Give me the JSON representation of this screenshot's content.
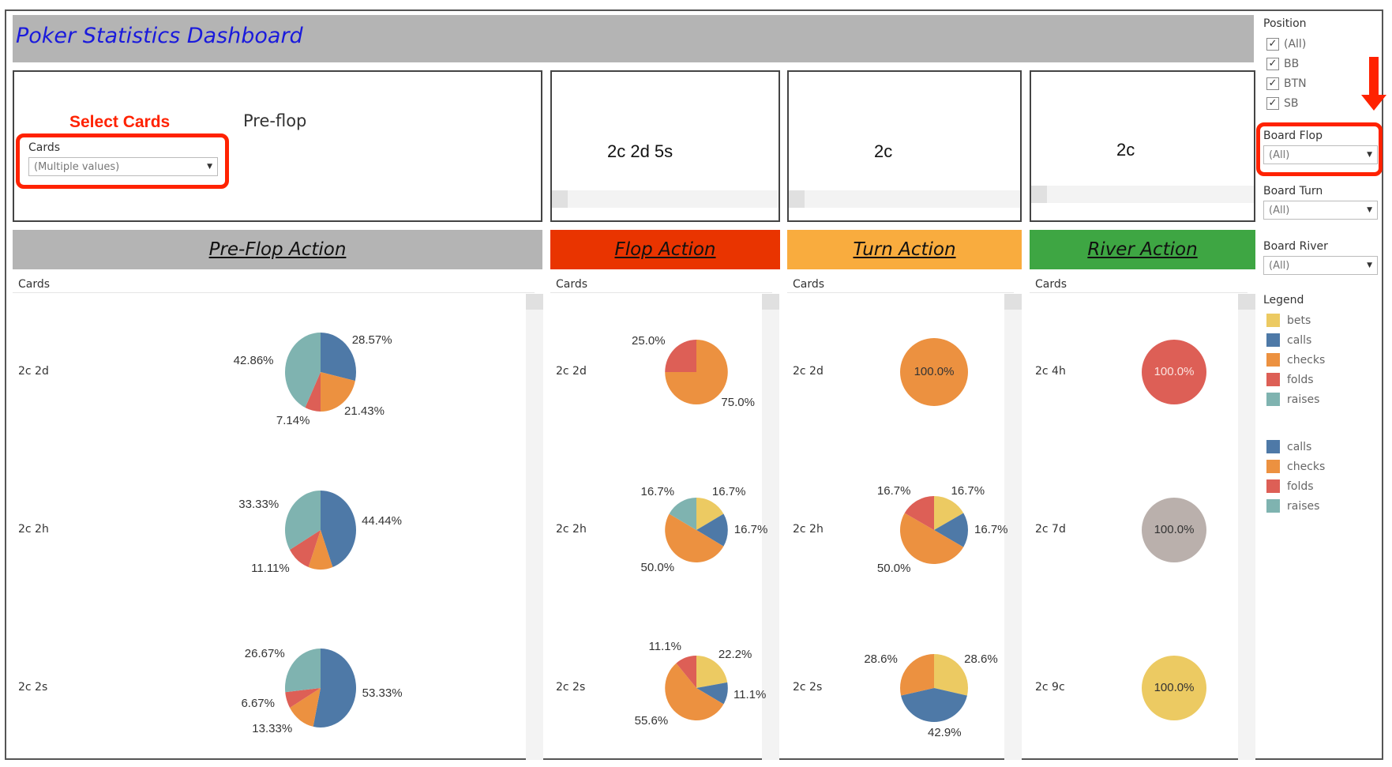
{
  "title": "Poker Statistics Dashboard",
  "colors": {
    "bets": "#ecca62",
    "calls": "#4e79a7",
    "checks": "#ec9140",
    "folds": "#dd5f56",
    "raises": "#7fb3b0",
    "unknown": "#bab0ac",
    "title_text": "#1a1adc",
    "annotation": "#ff2200",
    "preflop_header": "#b4b4b4",
    "flop_header": "#e93400",
    "turn_header": "#f9ac3e",
    "river_header": "#3ea643"
  },
  "top_panels": {
    "preflop": {
      "annotation_label": "Select Cards",
      "stage_label": "Pre-flop",
      "cards_filter": {
        "label": "Cards",
        "value": "(Multiple values)"
      }
    },
    "flop": {
      "value": "2c 2d 5s"
    },
    "turn": {
      "value": "2c"
    },
    "river": {
      "value": "2c"
    }
  },
  "sidebar": {
    "position": {
      "title": "Position",
      "options": [
        {
          "label": "(All)",
          "checked": true
        },
        {
          "label": "BB",
          "checked": true
        },
        {
          "label": "BTN",
          "checked": true
        },
        {
          "label": "SB",
          "checked": true
        }
      ]
    },
    "board_flop": {
      "label": "Board Flop",
      "value": "(All)"
    },
    "board_turn": {
      "label": "Board Turn",
      "value": "(All)"
    },
    "board_river": {
      "label": "Board River",
      "value": "(All)"
    },
    "legend": {
      "title": "Legend",
      "group1": [
        "bets",
        "calls",
        "checks",
        "folds",
        "raises"
      ],
      "group2": [
        "calls",
        "checks",
        "folds",
        "raises"
      ]
    }
  },
  "chart_data": [
    {
      "type": "pie",
      "title": "Pre-Flop Action",
      "row_header": "Cards",
      "rows": [
        {
          "cards": "2c 2d",
          "slices": [
            {
              "action": "calls",
              "value": 28.57,
              "label": "28.57%"
            },
            {
              "action": "checks",
              "value": 21.43,
              "label": "21.43%"
            },
            {
              "action": "folds",
              "value": 7.14,
              "label": "7.14%"
            },
            {
              "action": "raises",
              "value": 42.86,
              "label": "42.86%"
            }
          ]
        },
        {
          "cards": "2c 2h",
          "slices": [
            {
              "action": "calls",
              "value": 44.44,
              "label": "44.44%"
            },
            {
              "action": "checks",
              "value": 11.11,
              "label": ""
            },
            {
              "action": "folds",
              "value": 11.11,
              "label": "11.11%"
            },
            {
              "action": "raises",
              "value": 33.33,
              "label": "33.33%"
            }
          ]
        },
        {
          "cards": "2c 2s",
          "slices": [
            {
              "action": "calls",
              "value": 53.33,
              "label": "53.33%"
            },
            {
              "action": "checks",
              "value": 13.33,
              "label": "13.33%"
            },
            {
              "action": "folds",
              "value": 6.67,
              "label": "6.67%"
            },
            {
              "action": "raises",
              "value": 26.67,
              "label": "26.67%"
            }
          ]
        }
      ]
    },
    {
      "type": "pie",
      "title": "Flop Action",
      "row_header": "Cards",
      "rows": [
        {
          "cards": "2c 2d",
          "slices": [
            {
              "action": "checks",
              "value": 75.0,
              "label": "75.0%"
            },
            {
              "action": "folds",
              "value": 25.0,
              "label": "25.0%"
            }
          ]
        },
        {
          "cards": "2c 2h",
          "slices": [
            {
              "action": "bets",
              "value": 16.7,
              "label": "16.7%"
            },
            {
              "action": "calls",
              "value": 16.7,
              "label": "16.7%"
            },
            {
              "action": "checks",
              "value": 50.0,
              "label": "50.0%"
            },
            {
              "action": "raises",
              "value": 16.7,
              "label": "16.7%"
            }
          ]
        },
        {
          "cards": "2c 2s",
          "slices": [
            {
              "action": "bets",
              "value": 22.2,
              "label": "22.2%"
            },
            {
              "action": "calls",
              "value": 11.1,
              "label": "11.1%"
            },
            {
              "action": "checks",
              "value": 55.6,
              "label": "55.6%"
            },
            {
              "action": "folds",
              "value": 11.1,
              "label": "11.1%"
            }
          ]
        }
      ]
    },
    {
      "type": "pie",
      "title": "Turn Action",
      "row_header": "Cards",
      "rows": [
        {
          "cards": "2c 2d",
          "slices": [
            {
              "action": "checks",
              "value": 100.0,
              "label": "100.0%"
            }
          ]
        },
        {
          "cards": "2c 2h",
          "slices": [
            {
              "action": "bets",
              "value": 16.7,
              "label": "16.7%"
            },
            {
              "action": "calls",
              "value": 16.7,
              "label": "16.7%"
            },
            {
              "action": "checks",
              "value": 50.0,
              "label": "50.0%"
            },
            {
              "action": "folds",
              "value": 16.7,
              "label": "16.7%"
            }
          ]
        },
        {
          "cards": "2c 2s",
          "slices": [
            {
              "action": "bets",
              "value": 28.6,
              "label": "28.6%"
            },
            {
              "action": "calls",
              "value": 42.9,
              "label": "42.9%"
            },
            {
              "action": "checks",
              "value": 28.6,
              "label": "28.6%"
            }
          ]
        }
      ]
    },
    {
      "type": "pie",
      "title": "River Action",
      "row_header": "Cards",
      "rows": [
        {
          "cards": "2c 4h",
          "slices": [
            {
              "action": "folds",
              "value": 100.0,
              "label": "100.0%"
            }
          ]
        },
        {
          "cards": "2c 7d",
          "slices": [
            {
              "action": "unknown",
              "value": 100.0,
              "label": "100.0%"
            }
          ]
        },
        {
          "cards": "2c 9c",
          "slices": [
            {
              "action": "bets",
              "value": 100.0,
              "label": "100.0%"
            }
          ]
        }
      ]
    }
  ]
}
